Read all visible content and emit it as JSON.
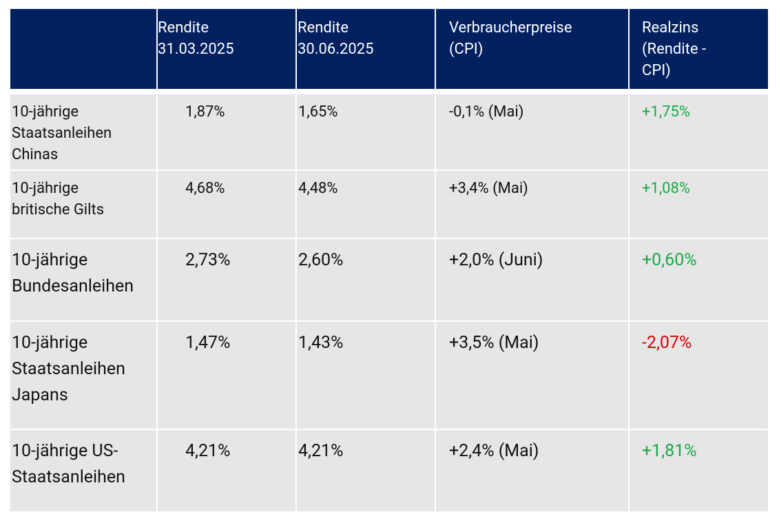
{
  "table": {
    "header": [
      "Rendite\n31.03.2025",
      "Rendite\n30.06.2025",
      "Verbraucherpreise\n(CPI)",
      "Realzins\n(Rendite -\nCPI)"
    ],
    "rows": [
      [
        "10-jährige\nStaatsanleihen\nChinas",
        "1,87%",
        "1,65%",
        "-0,1% (Mai)",
        "+1,75%"
      ],
      [
        "10-jährige\nbritische Gilts",
        "4,68%",
        "4,48%",
        "+3,4% (Mai)",
        "+1,08%"
      ],
      [
        "10-jährige\nBundesanleihen",
        "2,73%",
        "2,60%",
        "+2,0% (Juni)",
        "+0,60%"
      ],
      [
        "10-jährige\nStaatsanleihen\nJapans",
        "1,47%",
        "1,43%",
        "+3,5% (Mai)",
        "-2,07%"
      ],
      [
        "10-jährige US-\nStaatsanleihen",
        "4,21%",
        "4,21%",
        "+2,4% (Mai)",
        "+1,81%"
      ]
    ]
  }
}
